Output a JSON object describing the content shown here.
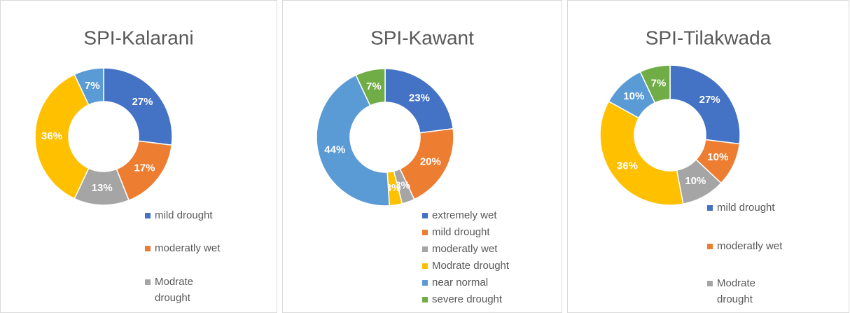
{
  "chart_data": [
    {
      "type": "donut",
      "title": "SPI-Kalarani",
      "categories": [
        "mild drought",
        "moderatly wet",
        "Modrate drought",
        null,
        null
      ],
      "values": [
        27,
        17,
        13,
        36,
        7
      ],
      "value_labels": [
        "27%",
        "17%",
        "13%",
        "36%",
        "7%"
      ],
      "colors": [
        "#4472c4",
        "#ed7d31",
        "#a5a5a5",
        "#ffc000",
        "#5b9bd5"
      ]
    },
    {
      "type": "donut",
      "title": "SPI-Kawant",
      "categories": [
        "extremely wet",
        "mild drought",
        "moderatly wet",
        "Modrate drought",
        "near normal",
        "severe drought"
      ],
      "values": [
        23,
        20,
        3,
        3,
        44,
        7
      ],
      "value_labels": [
        "23%",
        "20%",
        "3%",
        "3%",
        "44%",
        "7%"
      ],
      "colors": [
        "#4472c4",
        "#ed7d31",
        "#a5a5a5",
        "#ffc000",
        "#5b9bd5",
        "#70ad47"
      ]
    },
    {
      "type": "donut",
      "title": "SPI-Tilakwada",
      "categories": [
        "mild drought",
        "moderatly wet",
        "Modrate drought",
        null,
        null,
        null
      ],
      "values": [
        27,
        10,
        10,
        36,
        10,
        7
      ],
      "value_labels": [
        "27%",
        "10%",
        "10%",
        "36%",
        "10%",
        "7%"
      ],
      "colors": [
        "#4472c4",
        "#ed7d31",
        "#a5a5a5",
        "#ffc000",
        "#5b9bd5",
        "#70ad47"
      ]
    }
  ]
}
